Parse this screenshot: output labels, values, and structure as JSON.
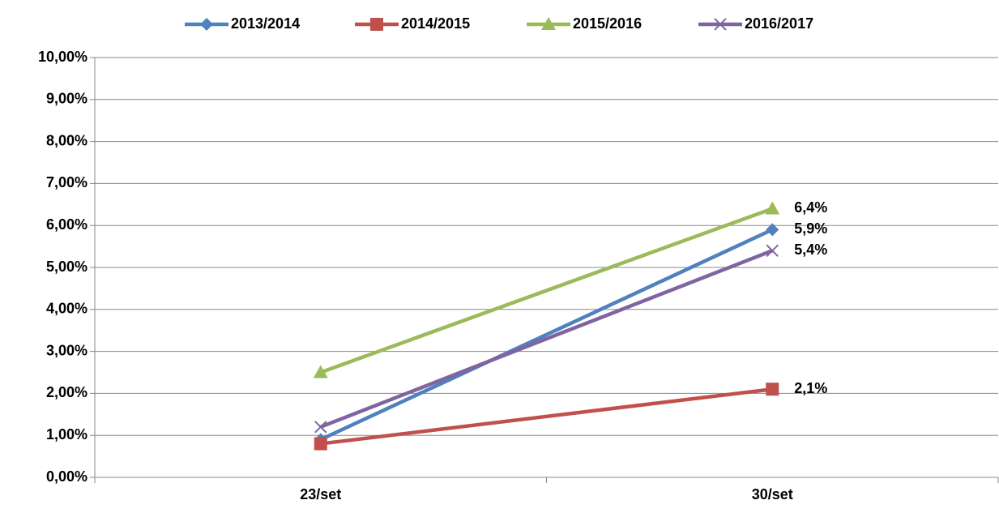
{
  "chart_data": {
    "type": "line",
    "categories": [
      "23/set",
      "30/set"
    ],
    "series": [
      {
        "name": "2013/2014",
        "color": "#4f81bd",
        "marker": "diamond",
        "values": [
          0.9,
          5.9
        ],
        "value_labels": [
          null,
          "5,9%"
        ]
      },
      {
        "name": "2014/2015",
        "color": "#c0504d",
        "marker": "square",
        "values": [
          0.8,
          2.1
        ],
        "value_labels": [
          null,
          "2,1%"
        ]
      },
      {
        "name": "2015/2016",
        "color": "#9bbb59",
        "marker": "triangle",
        "values": [
          2.5,
          6.4
        ],
        "value_labels": [
          null,
          "6,4%"
        ]
      },
      {
        "name": "2016/2017",
        "color": "#8064a2",
        "marker": "x",
        "values": [
          1.2,
          5.4
        ],
        "value_labels": [
          null,
          "5,4%"
        ]
      }
    ],
    "ylim": [
      0,
      10
    ],
    "yticks": [
      {
        "value": 0,
        "label": "0,00%"
      },
      {
        "value": 1,
        "label": "1,00%"
      },
      {
        "value": 2,
        "label": "2,00%"
      },
      {
        "value": 3,
        "label": "3,00%"
      },
      {
        "value": 4,
        "label": "4,00%"
      },
      {
        "value": 5,
        "label": "5,00%"
      },
      {
        "value": 6,
        "label": "6,00%"
      },
      {
        "value": 7,
        "label": "7,00%"
      },
      {
        "value": 8,
        "label": "8,00%"
      },
      {
        "value": 9,
        "label": "9,00%"
      },
      {
        "value": 10,
        "label": "10,00%"
      }
    ],
    "grid": true,
    "legend": "top"
  }
}
